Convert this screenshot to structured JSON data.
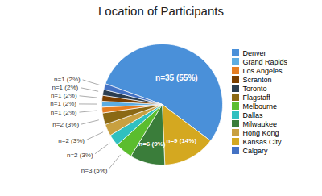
{
  "chart_data": {
    "type": "pie",
    "title": "Location of Participants",
    "categories": [
      "Denver",
      "Kansas City",
      "Milwaukee",
      "Melbourne",
      "Dallas",
      "Hong Kong",
      "Flagstaff",
      "Los Angeles",
      "Grand Rapids",
      "Scranton",
      "Toronto",
      "Calgary"
    ],
    "values": [
      35,
      9,
      6,
      3,
      2,
      2,
      2,
      1,
      1,
      1,
      1,
      1
    ],
    "value_labels": [
      "n=35 (55%)",
      "n=9 (14%)",
      "n=6 (9%)",
      "n=3 (5%)",
      "n=2 (3%)",
      "n=2 (3%)",
      "n=2 (3%)",
      "n=1 (2%)",
      "n=1 (2%)",
      "n=1 (2%)",
      "n=1 (2%)",
      "n=1 (2%)"
    ],
    "colors": [
      "#4A90D9",
      "#D4A820",
      "#3A7D3A",
      "#5BBD2E",
      "#30C0C0",
      "#C8A040",
      "#8B6914",
      "#E67E22",
      "#5DADE2",
      "#7B3F00",
      "#2C3E50",
      "#4472C4"
    ],
    "data_labels": true,
    "legend": "right",
    "legend_entries": [
      "Denver",
      "Grand Rapids",
      "Los Angeles",
      "Scranton",
      "Toronto",
      "Flagstaff",
      "Melbourne",
      "Dallas",
      "Milwaukee",
      "Hong Kong",
      "Kansas City",
      "Calgary"
    ]
  }
}
